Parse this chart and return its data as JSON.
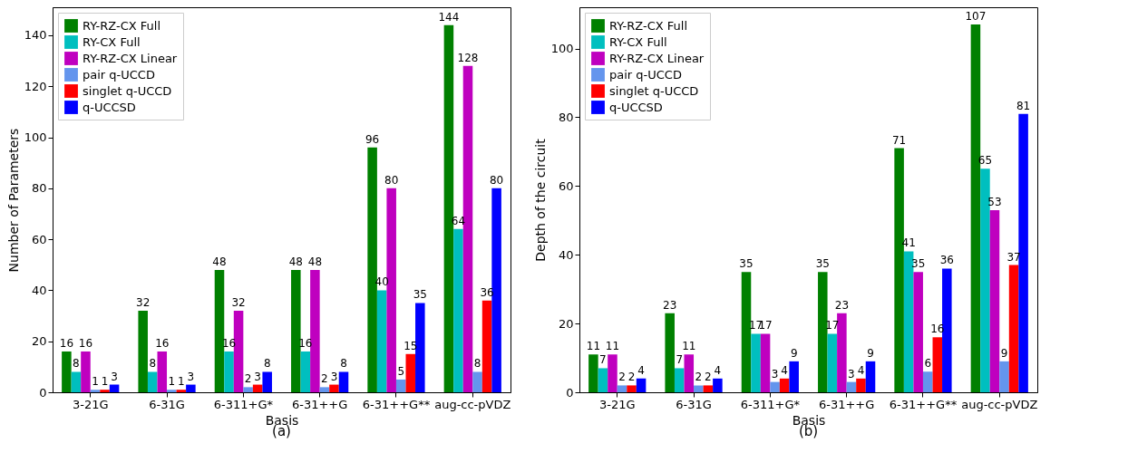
{
  "chart_data": [
    {
      "type": "bar",
      "xlabel": "Basis",
      "ylabel": "Number of Parameters",
      "annotations": [
        "(a)"
      ],
      "categories": [
        "3-21G",
        "6-31G",
        "6-311+G*",
        "6-31++G",
        "6-31++G**",
        "aug-cc-pVDZ"
      ],
      "ylim": [
        0,
        151
      ],
      "yticks": [
        0,
        20,
        40,
        60,
        80,
        100,
        120,
        140
      ],
      "data_labels": true,
      "legend": "top left",
      "grid": false,
      "series": [
        {
          "name": "RY-RZ-CX Full",
          "color": "#008000",
          "values": [
            16,
            32,
            48,
            48,
            96,
            144
          ]
        },
        {
          "name": "RY-CX Full",
          "color": "#00bfbf",
          "values": [
            8,
            8,
            16,
            16,
            40,
            64
          ]
        },
        {
          "name": "RY-RZ-CX Linear",
          "color": "#bf00bf",
          "values": [
            16,
            16,
            32,
            48,
            80,
            128
          ]
        },
        {
          "name": "pair q-UCCD",
          "color": "#6495ed",
          "values": [
            1,
            1,
            2,
            2,
            5,
            8
          ]
        },
        {
          "name": "singlet q-UCCD",
          "color": "#ff0000",
          "values": [
            1,
            1,
            3,
            3,
            15,
            36
          ]
        },
        {
          "name": "q-UCCSD",
          "color": "#0000ff",
          "values": [
            3,
            3,
            8,
            8,
            35,
            80
          ]
        }
      ]
    },
    {
      "type": "bar",
      "xlabel": "Basis",
      "ylabel": "Depth of the circuit",
      "annotations": [
        "(b)"
      ],
      "categories": [
        "3-21G",
        "6-31G",
        "6-311+G*",
        "6-31++G",
        "6-31++G**",
        "aug-cc-pVDZ"
      ],
      "ylim": [
        0,
        112
      ],
      "yticks": [
        0,
        20,
        40,
        60,
        80,
        100
      ],
      "data_labels": true,
      "legend": "top left",
      "grid": false,
      "series": [
        {
          "name": "RY-RZ-CX Full",
          "color": "#008000",
          "values": [
            11,
            23,
            35,
            35,
            71,
            107
          ]
        },
        {
          "name": "RY-CX Full",
          "color": "#00bfbf",
          "values": [
            7,
            7,
            17,
            17,
            41,
            65
          ]
        },
        {
          "name": "RY-RZ-CX Linear",
          "color": "#bf00bf",
          "values": [
            11,
            11,
            17,
            23,
            35,
            53
          ]
        },
        {
          "name": "pair q-UCCD",
          "color": "#6495ed",
          "values": [
            2,
            2,
            3,
            3,
            6,
            9
          ]
        },
        {
          "name": "singlet q-UCCD",
          "color": "#ff0000",
          "values": [
            2,
            2,
            4,
            4,
            16,
            37
          ]
        },
        {
          "name": "q-UCCSD",
          "color": "#0000ff",
          "values": [
            4,
            4,
            9,
            9,
            36,
            81
          ]
        }
      ]
    }
  ]
}
